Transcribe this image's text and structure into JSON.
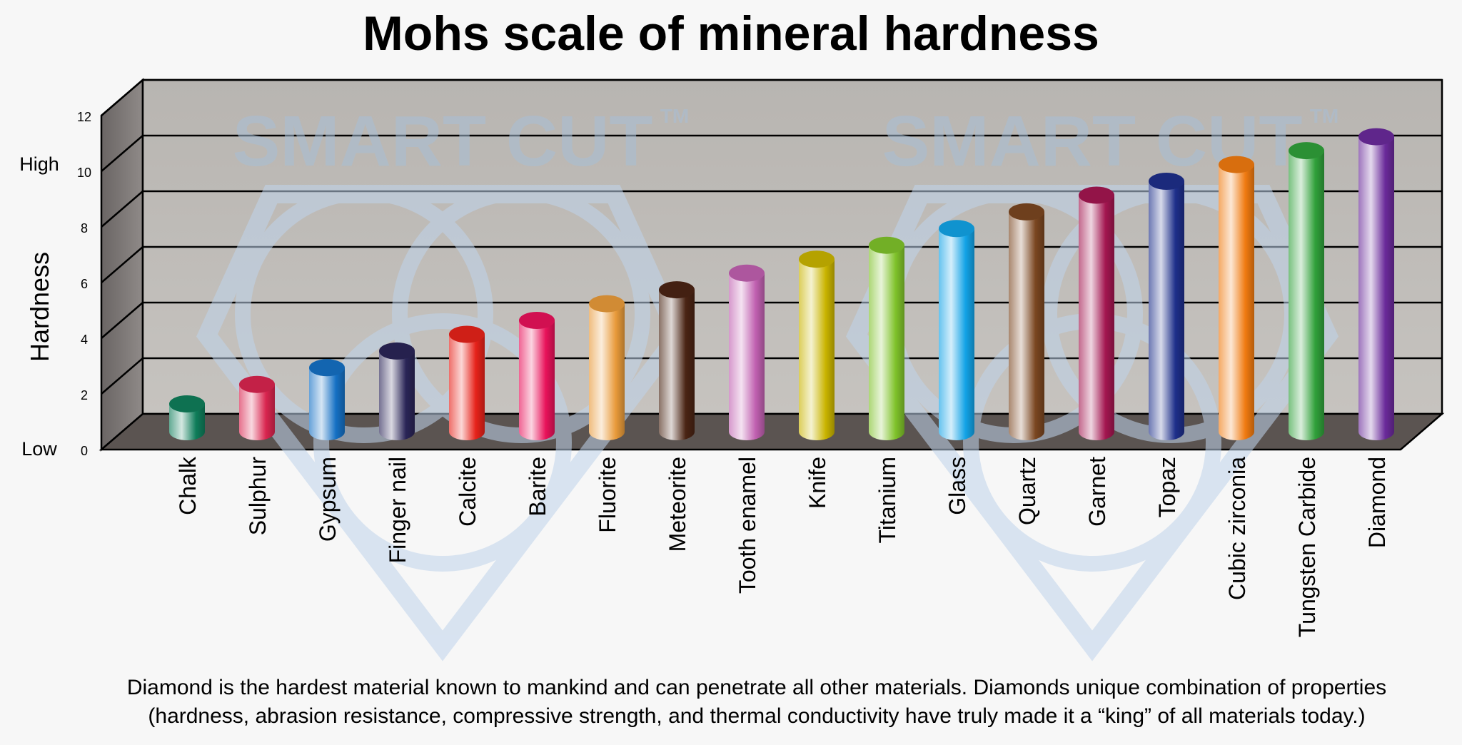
{
  "chart_data": {
    "type": "bar",
    "title": "Mohs scale of mineral hardness",
    "xlabel": "",
    "ylabel": "Hardness",
    "ylim": [
      0,
      12
    ],
    "yticks": [
      0,
      2,
      4,
      6,
      8,
      10,
      12
    ],
    "y_scale_labels": {
      "low": "Low",
      "high": "High"
    },
    "grid": true,
    "categories": [
      "Chalk",
      "Sulphur",
      "Gypsum",
      "Finger nail",
      "Calcite",
      "Barite",
      "Fluorite",
      "Meteorite",
      "Tooth enamel",
      "Knife",
      "Titanium",
      "Glass",
      "Quartz",
      "Garnet",
      "Topaz",
      "Cubic zirconia",
      "Tungsten Carbide",
      "Diamond"
    ],
    "values": [
      1,
      1.7,
      2.3,
      2.9,
      3.5,
      4,
      4.6,
      5.1,
      5.7,
      6.2,
      6.7,
      7.3,
      7.9,
      8.5,
      9,
      9.6,
      10.1,
      10.6
    ],
    "colors": [
      "#0f7d5a",
      "#d9254f",
      "#1570c4",
      "#2a2557",
      "#e6221a",
      "#e8125a",
      "#e89a3a",
      "#4a2414",
      "#c060b0",
      "#c9b400",
      "#7fc22a",
      "#12a3e6",
      "#7a4620",
      "#a31650",
      "#1e2f8a",
      "#f07a10",
      "#30a03a",
      "#6a2a9a"
    ],
    "watermark": "SMART CUT",
    "watermark_tm": "TM",
    "caption": [
      "Diamond is the hardest material known to mankind and can penetrate all other materials. Diamonds unique combination of properties",
      "(hardness, abrasion resistance, compressive strength, and thermal conductivity have truly made it a “king”  of all materials today.)"
    ]
  }
}
